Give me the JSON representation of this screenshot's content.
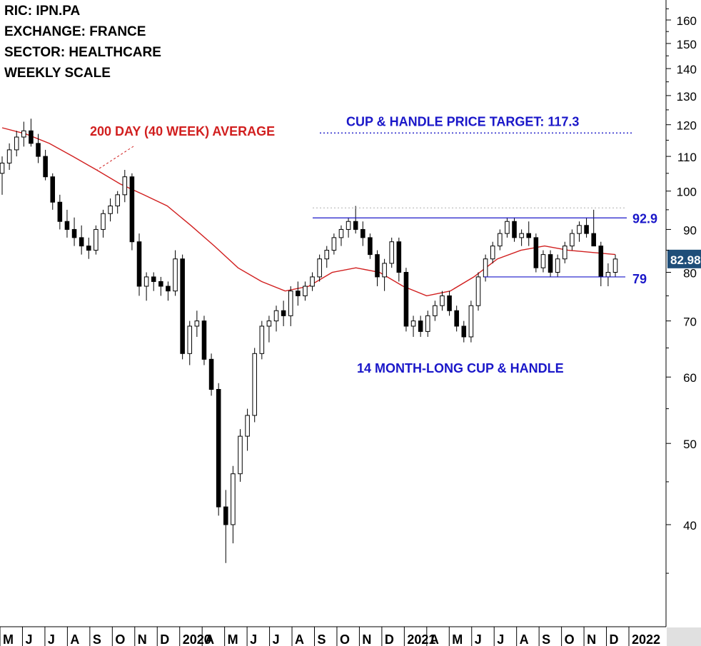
{
  "info": {
    "ric": "RIC: IPN.PA",
    "exchange": "EXCHANGE: FRANCE",
    "sector": "SECTOR: HEALTHCARE",
    "scale": "WEEKLY SCALE"
  },
  "annotations": {
    "ma_label": "200 DAY (40 WEEK) AVERAGE",
    "target_label": "CUP & HANDLE PRICE TARGET: 117.3",
    "pattern_label": "14 MONTH-LONG CUP & HANDLE",
    "resistance_label": "92.9",
    "support_label": "79",
    "last_price_label": "82.98"
  },
  "colors": {
    "ma": "#d11f1f",
    "annotation_blue": "#1a17c9",
    "last_price_bg": "#1f4e79",
    "up_candle": "#ffffff",
    "down_candle": "#000000"
  },
  "chart_data": {
    "type": "candlestick",
    "title": "",
    "scale": "log",
    "ylim": [
      32,
      165
    ],
    "yticks": [
      40,
      50,
      60,
      70,
      80,
      90,
      100,
      110,
      120,
      130,
      140,
      150,
      160
    ],
    "xlabels": [
      "M",
      "J",
      "J",
      "A",
      "S",
      "O",
      "N",
      "D",
      "2020",
      "A",
      "M",
      "J",
      "J",
      "A",
      "S",
      "O",
      "N",
      "D",
      "2021",
      "A",
      "M",
      "J",
      "J",
      "A",
      "S",
      "O",
      "N",
      "D",
      "2022"
    ],
    "price_target": 117.3,
    "resistance": 92.9,
    "support": 79,
    "last_price": 82.98,
    "series": [
      {
        "name": "200 DAY (40 WEEK) AVERAGE",
        "type": "line",
        "values": [
          119,
          117,
          114,
          110,
          106,
          102,
          99,
          96,
          91,
          86,
          81,
          78,
          76,
          77,
          80,
          81,
          80,
          77,
          75,
          76,
          79,
          83,
          85,
          86,
          85,
          84.5,
          84
        ]
      },
      {
        "name": "",
        "type": "candlestick",
        "values": [
          [
            105,
            110,
            99,
            108
          ],
          [
            108,
            114,
            106,
            112
          ],
          [
            112,
            118,
            110,
            116
          ],
          [
            116,
            121,
            113,
            118
          ],
          [
            118,
            122,
            113,
            114
          ],
          [
            114,
            117,
            108,
            110
          ],
          [
            110,
            112,
            103,
            104
          ],
          [
            104,
            105,
            95,
            97
          ],
          [
            97,
            99,
            90,
            92
          ],
          [
            92,
            95,
            88,
            90
          ],
          [
            90,
            93,
            86,
            88
          ],
          [
            88,
            91,
            84,
            86
          ],
          [
            86,
            88,
            83,
            85
          ],
          [
            85,
            91,
            84,
            90
          ],
          [
            90,
            95,
            88,
            94
          ],
          [
            94,
            98,
            92,
            96
          ],
          [
            96,
            100,
            94,
            99
          ],
          [
            99,
            106,
            97,
            104
          ],
          [
            104,
            105,
            85,
            87
          ],
          [
            87,
            89,
            75,
            77
          ],
          [
            77,
            80,
            74,
            79
          ],
          [
            79,
            80,
            76,
            78
          ],
          [
            78,
            79,
            75,
            77
          ],
          [
            77,
            78,
            74,
            76
          ],
          [
            76,
            85,
            75,
            83
          ],
          [
            83,
            84,
            63,
            64
          ],
          [
            64,
            70,
            62,
            69
          ],
          [
            69,
            72,
            67,
            70
          ],
          [
            70,
            71,
            62,
            63
          ],
          [
            63,
            64,
            57,
            58
          ],
          [
            58,
            59,
            41,
            42
          ],
          [
            42,
            44,
            36,
            40
          ],
          [
            40,
            47,
            38,
            46
          ],
          [
            46,
            52,
            45,
            51
          ],
          [
            51,
            55,
            49,
            54
          ],
          [
            54,
            65,
            53,
            64
          ],
          [
            64,
            70,
            63,
            69
          ],
          [
            69,
            71,
            66,
            70
          ],
          [
            70,
            73,
            68,
            72
          ],
          [
            72,
            74,
            69,
            71
          ],
          [
            71,
            77,
            69,
            76
          ],
          [
            76,
            78,
            73,
            75
          ],
          [
            75,
            78,
            74,
            77
          ],
          [
            77,
            80,
            76,
            79
          ],
          [
            79,
            84,
            78,
            83
          ],
          [
            83,
            86,
            81,
            85
          ],
          [
            85,
            89,
            84,
            88
          ],
          [
            88,
            91,
            86,
            90
          ],
          [
            90,
            93,
            88,
            92
          ],
          [
            92,
            96,
            89,
            90
          ],
          [
            90,
            92,
            86,
            88
          ],
          [
            88,
            89,
            83,
            84
          ],
          [
            84,
            85,
            77,
            79
          ],
          [
            79,
            83,
            76,
            82
          ],
          [
            82,
            88,
            81,
            87
          ],
          [
            87,
            88,
            78,
            80
          ],
          [
            80,
            81,
            68,
            69
          ],
          [
            69,
            71,
            67,
            70
          ],
          [
            70,
            71,
            67,
            68
          ],
          [
            68,
            72,
            67,
            71
          ],
          [
            71,
            74,
            70,
            73
          ],
          [
            73,
            76,
            72,
            75
          ],
          [
            75,
            76,
            71,
            72
          ],
          [
            72,
            73,
            68,
            69
          ],
          [
            69,
            70,
            66,
            67
          ],
          [
            67,
            74,
            66,
            73
          ],
          [
            73,
            80,
            72,
            79
          ],
          [
            79,
            84,
            78,
            83
          ],
          [
            83,
            87,
            82,
            86
          ],
          [
            86,
            90,
            85,
            89
          ],
          [
            89,
            93,
            88,
            92
          ],
          [
            92,
            93,
            87,
            88
          ],
          [
            88,
            90,
            86,
            89
          ],
          [
            89,
            92,
            86,
            88
          ],
          [
            88,
            89,
            80,
            81
          ],
          [
            81,
            85,
            80,
            84
          ],
          [
            84,
            85,
            79,
            80
          ],
          [
            80,
            84,
            79,
            83
          ],
          [
            83,
            87,
            82,
            86
          ],
          [
            86,
            90,
            85,
            89
          ],
          [
            89,
            92,
            87,
            91
          ],
          [
            91,
            93,
            88,
            89
          ],
          [
            89,
            95,
            88,
            86
          ],
          [
            86,
            87,
            77,
            79
          ],
          [
            79,
            82,
            77,
            80
          ],
          [
            80,
            84,
            79,
            82.98
          ]
        ]
      }
    ]
  }
}
